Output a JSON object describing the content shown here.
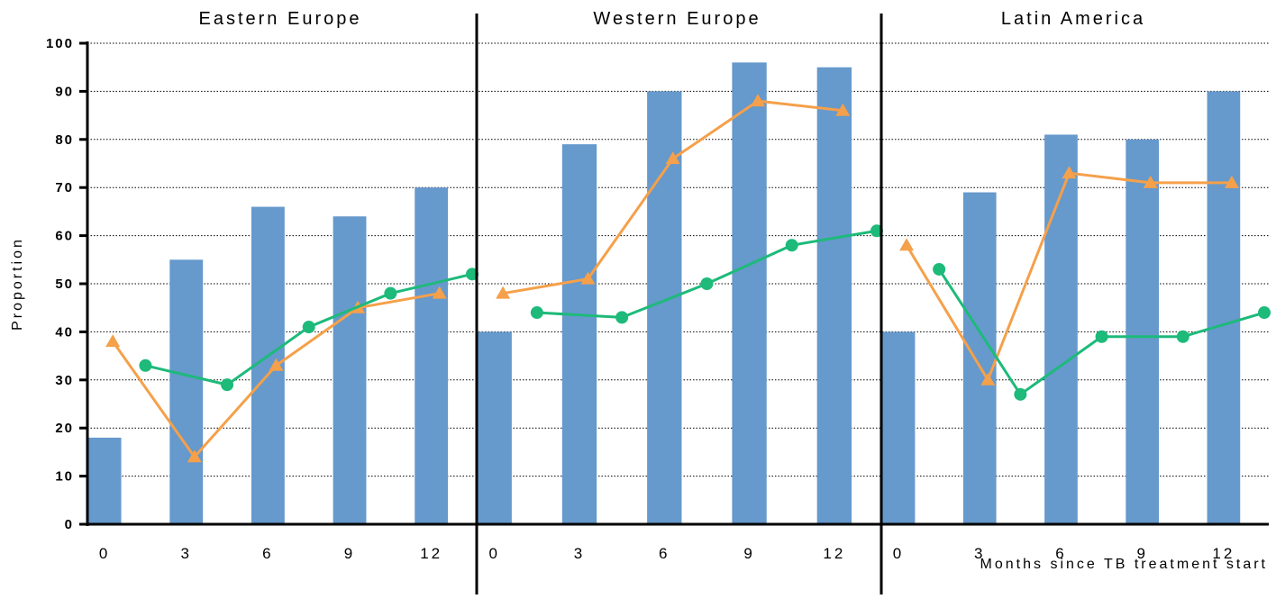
{
  "chart_data": {
    "type": "bar",
    "ylabel": "Proportion",
    "xlabel": "Months since TB treatment start",
    "ylim": [
      0,
      100
    ],
    "yticks": [
      "0",
      "10",
      "20",
      "30",
      "40",
      "50",
      "60",
      "70",
      "80",
      "90",
      "100"
    ],
    "categories": [
      "0",
      "3",
      "6",
      "9",
      "12"
    ],
    "grid": true,
    "colors": {
      "bars": "#6699cc",
      "triangle_series": "#f5a04a",
      "circle_series": "#1dba7a"
    },
    "panels": [
      {
        "title": "Eastern Europe",
        "bars": [
          18,
          55,
          66,
          64,
          70
        ],
        "triangle_series": {
          "x": [
            1,
            4,
            7,
            10,
            13
          ],
          "values": [
            38,
            14,
            33,
            45,
            48
          ]
        },
        "circle_series": {
          "x": [
            2,
            5,
            8,
            11,
            14
          ],
          "values": [
            33,
            29,
            41,
            48,
            52
          ]
        }
      },
      {
        "title": "Western Europe",
        "bars": [
          40,
          79,
          90,
          96,
          95
        ],
        "triangle_series": {
          "x": [
            1,
            4,
            7,
            10,
            13
          ],
          "values": [
            48,
            51,
            76,
            88,
            86
          ]
        },
        "circle_series": {
          "x": [
            2,
            5,
            8,
            11,
            14
          ],
          "values": [
            44,
            43,
            50,
            58,
            61
          ]
        }
      },
      {
        "title": "Latin America",
        "bars": [
          40,
          69,
          81,
          80,
          90
        ],
        "triangle_series": {
          "x": [
            1,
            4,
            7,
            10,
            13
          ],
          "values": [
            58,
            30,
            73,
            71,
            71
          ]
        },
        "circle_series": {
          "x": [
            2,
            5,
            8,
            11,
            14
          ],
          "values": [
            53,
            27,
            39,
            39,
            44
          ]
        }
      }
    ]
  }
}
